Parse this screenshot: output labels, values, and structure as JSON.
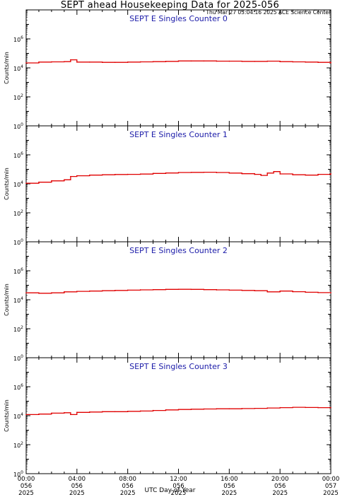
{
  "header": {
    "title": "SEPT ahead Housekeeping Data for 2025-056",
    "timestamp": "Thu Mar 27 03:04:16 2025 ACE Science Center"
  },
  "x_axis": {
    "label": "UTC Day of Year",
    "ticks": [
      {
        "t": 0,
        "lines": [
          "00:00",
          "056",
          "2025"
        ]
      },
      {
        "t": 4,
        "lines": [
          "04:00",
          "056",
          "2025"
        ]
      },
      {
        "t": 8,
        "lines": [
          "08:00",
          "056",
          "2025"
        ]
      },
      {
        "t": 12,
        "lines": [
          "12:00",
          "056",
          "2025"
        ]
      },
      {
        "t": 16,
        "lines": [
          "16:00",
          "056",
          "2025"
        ]
      },
      {
        "t": 20,
        "lines": [
          "20:00",
          "056",
          "2025"
        ]
      },
      {
        "t": 24,
        "lines": [
          "00:00",
          "057",
          "2025"
        ]
      }
    ]
  },
  "colors": {
    "series": "#e00000",
    "panel_title": "#1a1aa8",
    "axes": "#000000"
  },
  "chart_data": [
    {
      "type": "line",
      "title": "SEPT E Singles Counter 0",
      "ylabel": "Counts/min",
      "yscale": "log",
      "ylim": [
        1,
        100000000
      ],
      "yticks": [
        "10^0",
        "10^2",
        "10^4",
        "10^6"
      ],
      "xlim": [
        0,
        24
      ],
      "x": [
        0,
        1,
        2,
        3,
        3.5,
        4,
        5,
        6,
        7,
        8,
        9,
        10,
        11,
        12,
        13,
        14,
        15,
        16,
        17,
        18,
        19,
        20,
        21,
        22,
        23,
        24
      ],
      "values": [
        22000,
        25000,
        26000,
        27000,
        36000,
        25000,
        25000,
        24000,
        24000,
        25000,
        26000,
        27000,
        28000,
        30000,
        30000,
        30000,
        29000,
        29000,
        28000,
        28000,
        29000,
        27000,
        26000,
        25000,
        24000,
        22000
      ]
    },
    {
      "type": "line",
      "title": "SEPT E Singles Counter 1",
      "ylabel": "Counts/min",
      "yscale": "log",
      "ylim": [
        1,
        100000000
      ],
      "yticks": [
        "10^0",
        "10^2",
        "10^4",
        "10^6"
      ],
      "xlim": [
        0,
        24
      ],
      "x": [
        0,
        1,
        2,
        3,
        3.5,
        4,
        5,
        6,
        7,
        8,
        9,
        10,
        11,
        12,
        13,
        14,
        15,
        16,
        17,
        18,
        18.5,
        19,
        19.5,
        20,
        21,
        22,
        23,
        24
      ],
      "values": [
        11000,
        13000,
        16000,
        19000,
        32000,
        36000,
        40000,
        42000,
        44000,
        45000,
        47000,
        52000,
        56000,
        60000,
        62000,
        63000,
        60000,
        55000,
        50000,
        45000,
        38000,
        55000,
        70000,
        48000,
        42000,
        40000,
        45000,
        50000
      ]
    },
    {
      "type": "line",
      "title": "SEPT E Singles Counter 2",
      "ylabel": "Counts/min",
      "yscale": "log",
      "ylim": [
        1,
        100000000
      ],
      "yticks": [
        "10^0",
        "10^2",
        "10^4",
        "10^6"
      ],
      "xlim": [
        0,
        24
      ],
      "x": [
        0,
        1,
        2,
        3,
        4,
        5,
        6,
        7,
        8,
        9,
        10,
        11,
        12,
        13,
        14,
        15,
        16,
        17,
        18,
        19,
        20,
        21,
        22,
        23,
        24
      ],
      "values": [
        30000,
        28000,
        30000,
        35000,
        38000,
        40000,
        42000,
        44000,
        46000,
        48000,
        50000,
        52000,
        53000,
        52000,
        50000,
        48000,
        46000,
        44000,
        42000,
        35000,
        40000,
        36000,
        33000,
        31000,
        30000
      ]
    },
    {
      "type": "line",
      "title": "SEPT E Singles Counter 3",
      "ylabel": "Counts/min",
      "yscale": "log",
      "ylim": [
        1,
        100000000
      ],
      "yticks": [
        "10^0",
        "10^2",
        "10^4",
        "10^6"
      ],
      "xlim": [
        0,
        24
      ],
      "x": [
        0,
        1,
        2,
        3,
        3.5,
        4,
        5,
        6,
        7,
        8,
        9,
        10,
        11,
        12,
        13,
        14,
        15,
        16,
        17,
        18,
        19,
        20,
        21,
        22,
        23,
        24
      ],
      "values": [
        12000,
        13000,
        15000,
        16000,
        12000,
        17000,
        18000,
        19000,
        19000,
        20000,
        21000,
        23000,
        25000,
        27000,
        28000,
        29000,
        30000,
        30000,
        31000,
        32000,
        34000,
        36000,
        38000,
        37000,
        36000,
        36000
      ]
    }
  ]
}
